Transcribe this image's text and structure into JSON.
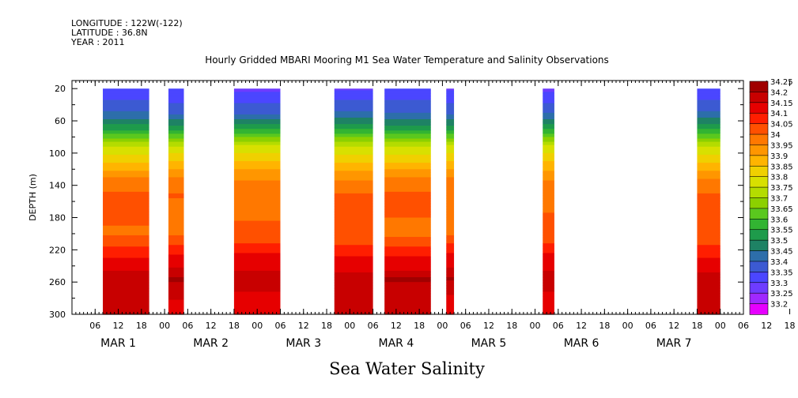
{
  "header": {
    "longitude": "LONGITUDE : 122W(-122)",
    "latitude": "LATITUDE : 36.8N",
    "year": "YEAR : 2011",
    "title": "Hourly Gridded MBARI Mooring M1 Sea Water Temperature and Salinity Observations"
  },
  "chart_data": {
    "type": "heatmap",
    "title": "Hourly Gridded MBARI Mooring M1 Sea Water Temperature and Salinity Observations",
    "xlabel": "Sea Water Salinity",
    "ylabel": "DEPTH (m)",
    "x_hours_range": [
      0,
      174
    ],
    "ylim": [
      300,
      20
    ],
    "y_ticks": [
      20,
      60,
      100,
      140,
      180,
      220,
      260,
      300
    ],
    "x_hour_ticks": [
      "06",
      "12",
      "18",
      "00",
      "06",
      "12",
      "18",
      "00",
      "06",
      "12",
      "18",
      "00",
      "06",
      "12",
      "18",
      "00",
      "06",
      "12",
      "18",
      "00",
      "06",
      "12",
      "18",
      "00",
      "06",
      "12",
      "18",
      "00",
      "06",
      "12",
      "18",
      "00"
    ],
    "date_labels": [
      "MAR  1",
      "MAR  2",
      "MAR  3",
      "MAR  4",
      "MAR  5",
      "MAR  6",
      "MAR  7"
    ],
    "data_segments_hours": [
      [
        8,
        20
      ],
      [
        25,
        29
      ],
      [
        42,
        54
      ],
      [
        68,
        78
      ],
      [
        81,
        93
      ],
      [
        97,
        99
      ],
      [
        122,
        125
      ],
      [
        162,
        168
      ]
    ],
    "colorbar": {
      "levels": [
        "34.25",
        "34.2",
        "34.15",
        "34.1",
        "34.05",
        "34",
        "33.95",
        "33.9",
        "33.85",
        "33.8",
        "33.75",
        "33.7",
        "33.65",
        "33.6",
        "33.55",
        "33.5",
        "33.45",
        "33.4",
        "33.35",
        "33.3",
        "33.25",
        "33.2"
      ],
      "colors": [
        "#a00000",
        "#c80000",
        "#e60000",
        "#ff1e00",
        "#ff5000",
        "#ff7800",
        "#ff9600",
        "#ffb400",
        "#f0d000",
        "#d8e000",
        "#b4dc00",
        "#8cd000",
        "#5ac81e",
        "#32b432",
        "#1e9b4b",
        "#1e8264",
        "#2d6eaa",
        "#3c5ad2",
        "#4b46ff",
        "#6e3cff",
        "#a028ff",
        "#e600ff"
      ]
    },
    "depth_profile": [
      {
        "depth": 20,
        "salinity": 33.35
      },
      {
        "depth": 50,
        "salinity": 33.45
      },
      {
        "depth": 70,
        "salinity": 33.6
      },
      {
        "depth": 90,
        "salinity": 33.8
      },
      {
        "depth": 110,
        "salinity": 33.9
      },
      {
        "depth": 130,
        "salinity": 34.0
      },
      {
        "depth": 150,
        "salinity": 34.05
      },
      {
        "depth": 200,
        "salinity": 34.05
      },
      {
        "depth": 225,
        "salinity": 34.15
      },
      {
        "depth": 245,
        "salinity": 34.2
      },
      {
        "depth": 255,
        "salinity": 34.25
      },
      {
        "depth": 275,
        "salinity": 34.2
      },
      {
        "depth": 300,
        "salinity": 34.2
      }
    ]
  }
}
